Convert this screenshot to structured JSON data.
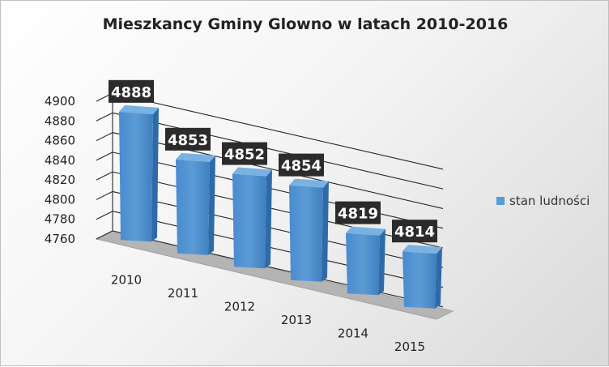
{
  "chart_data": {
    "type": "bar",
    "title": "Mieszkancy Gminy Glowno w latach  2010-2016",
    "categories": [
      "2010",
      "2011",
      "2012",
      "2013",
      "2014",
      "2015"
    ],
    "series": [
      {
        "name": "stan ludności",
        "values": [
          4888,
          4853,
          4852,
          4854,
          4819,
          4814
        ],
        "color": "#5b9bd5"
      }
    ],
    "ylim": [
      4760,
      4900
    ],
    "yticks": [
      4760,
      4780,
      4800,
      4820,
      4840,
      4860,
      4880,
      4900
    ],
    "grid": true,
    "legend": "right",
    "data_labels": true
  }
}
